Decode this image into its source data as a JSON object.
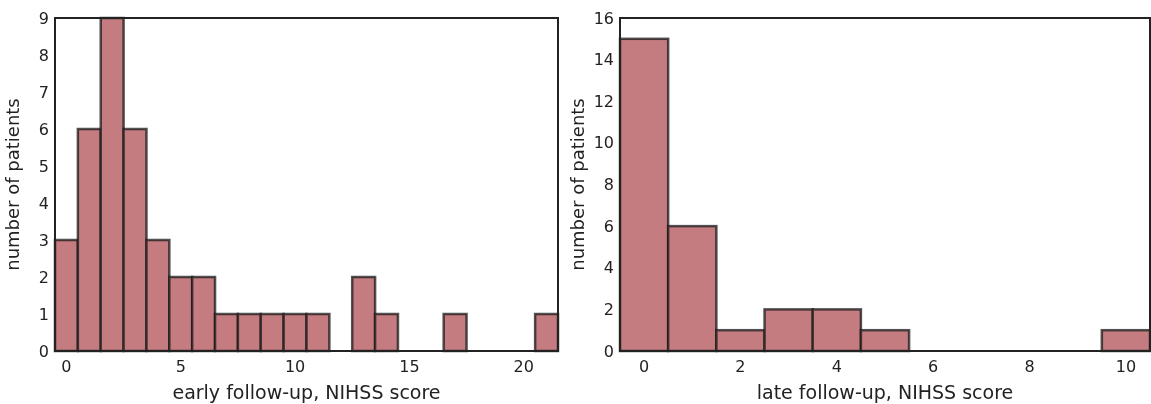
{
  "chart_data": [
    {
      "type": "histogram",
      "xlabel": "early follow-up, NIHSS score",
      "ylabel": "number of patients",
      "color": "#c47c80",
      "bins": [
        -0.5,
        0.5,
        1.5,
        2.5,
        3.5,
        4.5,
        5.5,
        6.5,
        7.5,
        8.5,
        9.5,
        10.5,
        11.5,
        12.5,
        13.5,
        14.5,
        15.5,
        16.5,
        17.5,
        18.5,
        19.5,
        20.5,
        21.5
      ],
      "values": [
        3,
        6,
        9,
        6,
        3,
        2,
        2,
        1,
        1,
        1,
        1,
        1,
        0,
        2,
        1,
        0,
        0,
        1,
        0,
        0,
        0,
        1
      ],
      "xlim": [
        -0.5,
        21.5
      ],
      "xticks": [
        0,
        5,
        10,
        15,
        20
      ],
      "ylim": [
        0,
        9
      ],
      "yticks": [
        0,
        1,
        2,
        3,
        4,
        5,
        6,
        7,
        8,
        9
      ],
      "grid": false
    },
    {
      "type": "histogram",
      "xlabel": "late follow-up, NIHSS score",
      "ylabel": "number of patients",
      "color": "#c47c80",
      "bins": [
        -0.5,
        0.5,
        1.5,
        2.5,
        3.5,
        4.5,
        5.5,
        6.5,
        7.5,
        8.5,
        9.5,
        10.5
      ],
      "values": [
        15,
        6,
        1,
        2,
        2,
        1,
        0,
        0,
        0,
        0,
        1
      ],
      "xlim": [
        -0.5,
        10.5
      ],
      "xticks": [
        0,
        2,
        4,
        6,
        8,
        10
      ],
      "ylim": [
        0,
        16
      ],
      "yticks": [
        0,
        2,
        4,
        6,
        8,
        10,
        12,
        14,
        16
      ],
      "grid": false
    }
  ]
}
